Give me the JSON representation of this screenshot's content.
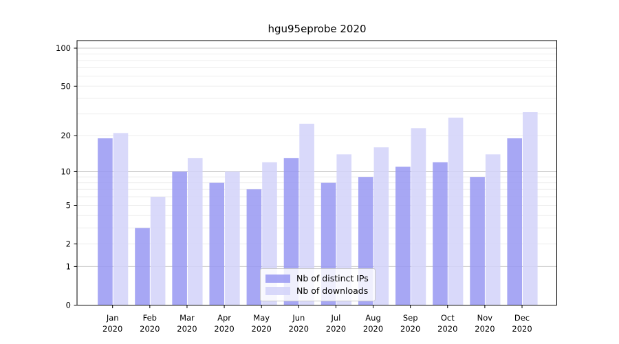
{
  "title": "hgu95eprobe 2020",
  "chart_data": {
    "type": "bar",
    "title": "hgu95eprobe 2020",
    "yscale": "log1p",
    "ylim": [
      0,
      115
    ],
    "yticks": [
      100,
      50,
      20,
      10,
      5,
      2,
      1,
      0
    ],
    "grid": true,
    "legend_position": "lower center",
    "categories": [
      "Jan",
      "Feb",
      "Mar",
      "Apr",
      "May",
      "Jun",
      "Jul",
      "Aug",
      "Sep",
      "Oct",
      "Nov",
      "Dec"
    ],
    "year_suffix": "2020",
    "series": [
      {
        "name": "Nb of distinct IPs",
        "color": "#9898f2",
        "values": [
          19,
          3,
          10,
          8,
          7,
          13,
          8,
          9,
          11,
          12,
          9,
          19
        ]
      },
      {
        "name": "Nb of downloads",
        "color": "#d2d2f9",
        "values": [
          21,
          6,
          13,
          10,
          12,
          25,
          14,
          16,
          23,
          28,
          14,
          31
        ]
      }
    ]
  }
}
